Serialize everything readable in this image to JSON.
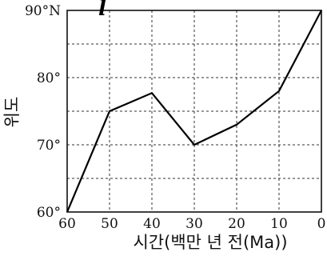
{
  "chart_data": {
    "type": "line",
    "xlabel": "시간(백만 년 전(Ma))",
    "ylabel": "위도",
    "x_ticks": [
      "60",
      "50",
      "40",
      "30",
      "20",
      "10",
      "0"
    ],
    "y_ticks": [
      "60°",
      "70°",
      "80°",
      "90°N"
    ],
    "xlim": [
      60,
      0
    ],
    "ylim": [
      60,
      90
    ],
    "grid": true,
    "series": [
      {
        "x": [
          60,
          50,
          40,
          30,
          20,
          10,
          0
        ],
        "y": [
          60,
          75,
          77.7,
          70,
          73,
          78,
          90
        ]
      }
    ],
    "annotation": "l"
  }
}
